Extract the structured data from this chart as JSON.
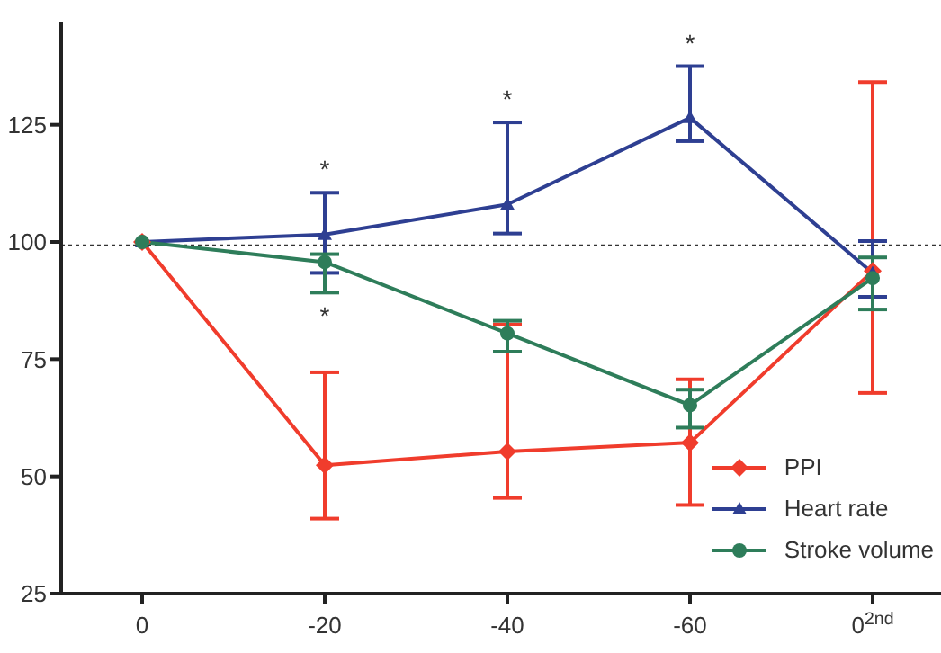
{
  "chart_data": {
    "type": "line",
    "categories": [
      "0",
      "-20",
      "-40",
      "-60",
      "0$^{2nd}$"
    ],
    "series": [
      {
        "name": "PPI",
        "color": "#f03c2c",
        "marker": "diamond",
        "values": [
          100,
          52.4,
          55.3,
          57.2,
          93.8
        ],
        "errors": [
          null,
          [
            41,
            72.2
          ],
          [
            45.4,
            82.4
          ],
          [
            43.9,
            70.7
          ],
          [
            67.8,
            134.1
          ]
        ]
      },
      {
        "name": "Heart rate",
        "color": "#2e3f92",
        "marker": "triangle",
        "values": [
          100,
          101.6,
          108,
          126.5,
          93.4
        ],
        "errors": [
          null,
          [
            93.4,
            110.5
          ],
          [
            101.8,
            125.5
          ],
          [
            121.5,
            137.5
          ],
          [
            88.3,
            100.2
          ]
        ]
      },
      {
        "name": "Stroke volume",
        "color": "#2e7d5a",
        "marker": "circle",
        "values": [
          100,
          95.7,
          80.5,
          65.2,
          92.3
        ],
        "errors": [
          null,
          [
            89.2,
            97.4
          ],
          [
            76.6,
            83.2
          ],
          [
            60.4,
            68.5
          ],
          [
            85.6,
            96.7
          ]
        ]
      }
    ],
    "ylim": [
      25,
      147
    ],
    "yticks": [
      25,
      50,
      75,
      100,
      125
    ],
    "ref_lines": [
      {
        "axis": "y",
        "value": 99.3,
        "line_style": "dotted",
        "color": "#333333"
      }
    ],
    "annotations": [
      {
        "text": "*",
        "x": "-20",
        "y": 110.5
      },
      {
        "text": "*",
        "x": "-40",
        "y": 125.5
      },
      {
        "text": "*",
        "x": "-60",
        "y": 137.5
      },
      {
        "text": "*",
        "x": "-20",
        "y": 89.2
      }
    ],
    "grid": false,
    "legend": "bottom right",
    "line_style": "solid"
  }
}
